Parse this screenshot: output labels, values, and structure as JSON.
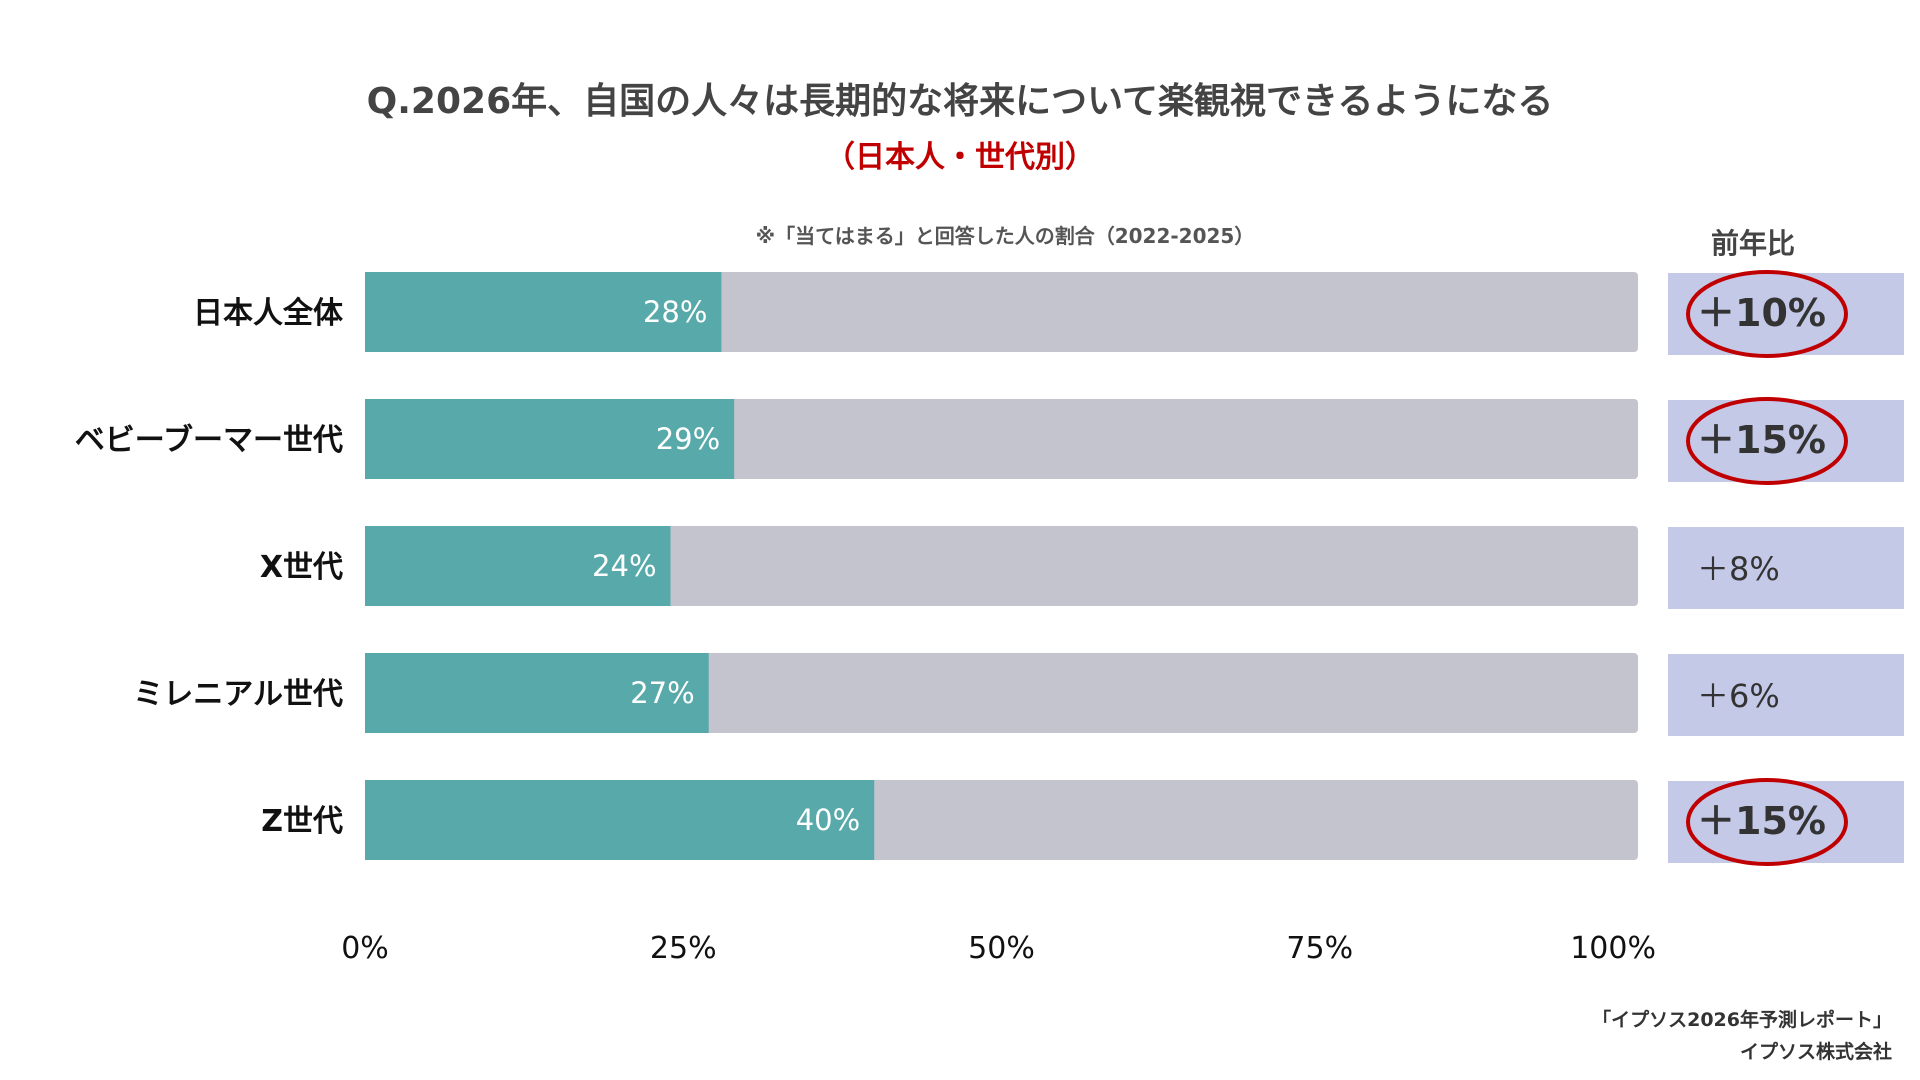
{
  "chart_data": {
    "type": "bar",
    "orientation": "horizontal",
    "stacked": true,
    "title": "Q.2026年、自国の人々は長期的な将来について楽観視できるようになる",
    "subtitle": "（日本人・世代別）",
    "note": "※「当てはまる」と回答した人の割合（2022-2025）",
    "categories": [
      "日本人全体",
      "ベビーブーマー世代",
      "X世代",
      "ミレニアル世代",
      "Z世代"
    ],
    "values": [
      28,
      29,
      24,
      27,
      40
    ],
    "value_labels": [
      "28%",
      "29%",
      "24%",
      "27%",
      "40%"
    ],
    "xlim": [
      0,
      100
    ],
    "x_ticks": [
      "0%",
      "25%",
      "50%",
      "75%",
      "100%"
    ],
    "yoy_header": "前年比",
    "yoy_labels": [
      "＋10%",
      "＋15%",
      "＋8%",
      "＋6%",
      "＋15%"
    ],
    "yoy_highlighted": [
      true,
      true,
      false,
      false,
      true
    ],
    "colors": {
      "bar_fill": "#58a9aa",
      "bar_track": "#c4c4cf",
      "yoy_box": "#c5c9e8",
      "highlight_ring": "#c00000",
      "value_label": "#ffffff"
    }
  },
  "source": {
    "line1": "「イプソス2026年予測レポート」",
    "line2": "イプソス株式会社"
  }
}
